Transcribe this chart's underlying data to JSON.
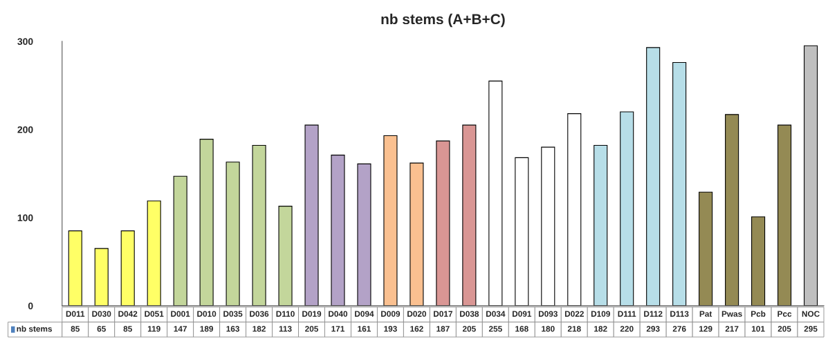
{
  "chart_data": {
    "type": "bar",
    "title": "nb stems (A+B+C)",
    "categories": [
      "D011",
      "D030",
      "D042",
      "D051",
      "D001",
      "D010",
      "D035",
      "D036",
      "D110",
      "D019",
      "D040",
      "D094",
      "D009",
      "D020",
      "D017",
      "D038",
      "D034",
      "D091",
      "D093",
      "D022",
      "D109",
      "D111",
      "D112",
      "D113",
      "Pat",
      "Pwas",
      "Pcb",
      "Pcc",
      "NOC"
    ],
    "series": [
      {
        "name": "nb stems",
        "color": "#4f81bd",
        "colors": [
          "#ffff66",
          "#ffff66",
          "#ffff66",
          "#ffff66",
          "#c3d69b",
          "#c3d69b",
          "#c3d69b",
          "#c3d69b",
          "#c3d69b",
          "#b3a2c7",
          "#b3a2c7",
          "#b3a2c7",
          "#fac090",
          "#fac090",
          "#d99694",
          "#d99694",
          "#ffffff",
          "#ffffff",
          "#ffffff",
          "#ffffff",
          "#b7dee8",
          "#b7dee8",
          "#b7dee8",
          "#b7dee8",
          "#948a54",
          "#948a54",
          "#948a54",
          "#948a54",
          "#bfbfbf"
        ],
        "values": [
          85,
          65,
          85,
          119,
          147,
          189,
          163,
          182,
          113,
          205,
          171,
          161,
          193,
          162,
          187,
          205,
          255,
          168,
          180,
          218,
          182,
          220,
          293,
          276,
          129,
          217,
          101,
          205,
          295
        ]
      }
    ],
    "ylim": [
      0,
      300
    ],
    "yticks": [
      0,
      100,
      200,
      300
    ],
    "grid": false,
    "data_labels": true,
    "legend": "bottom left"
  }
}
